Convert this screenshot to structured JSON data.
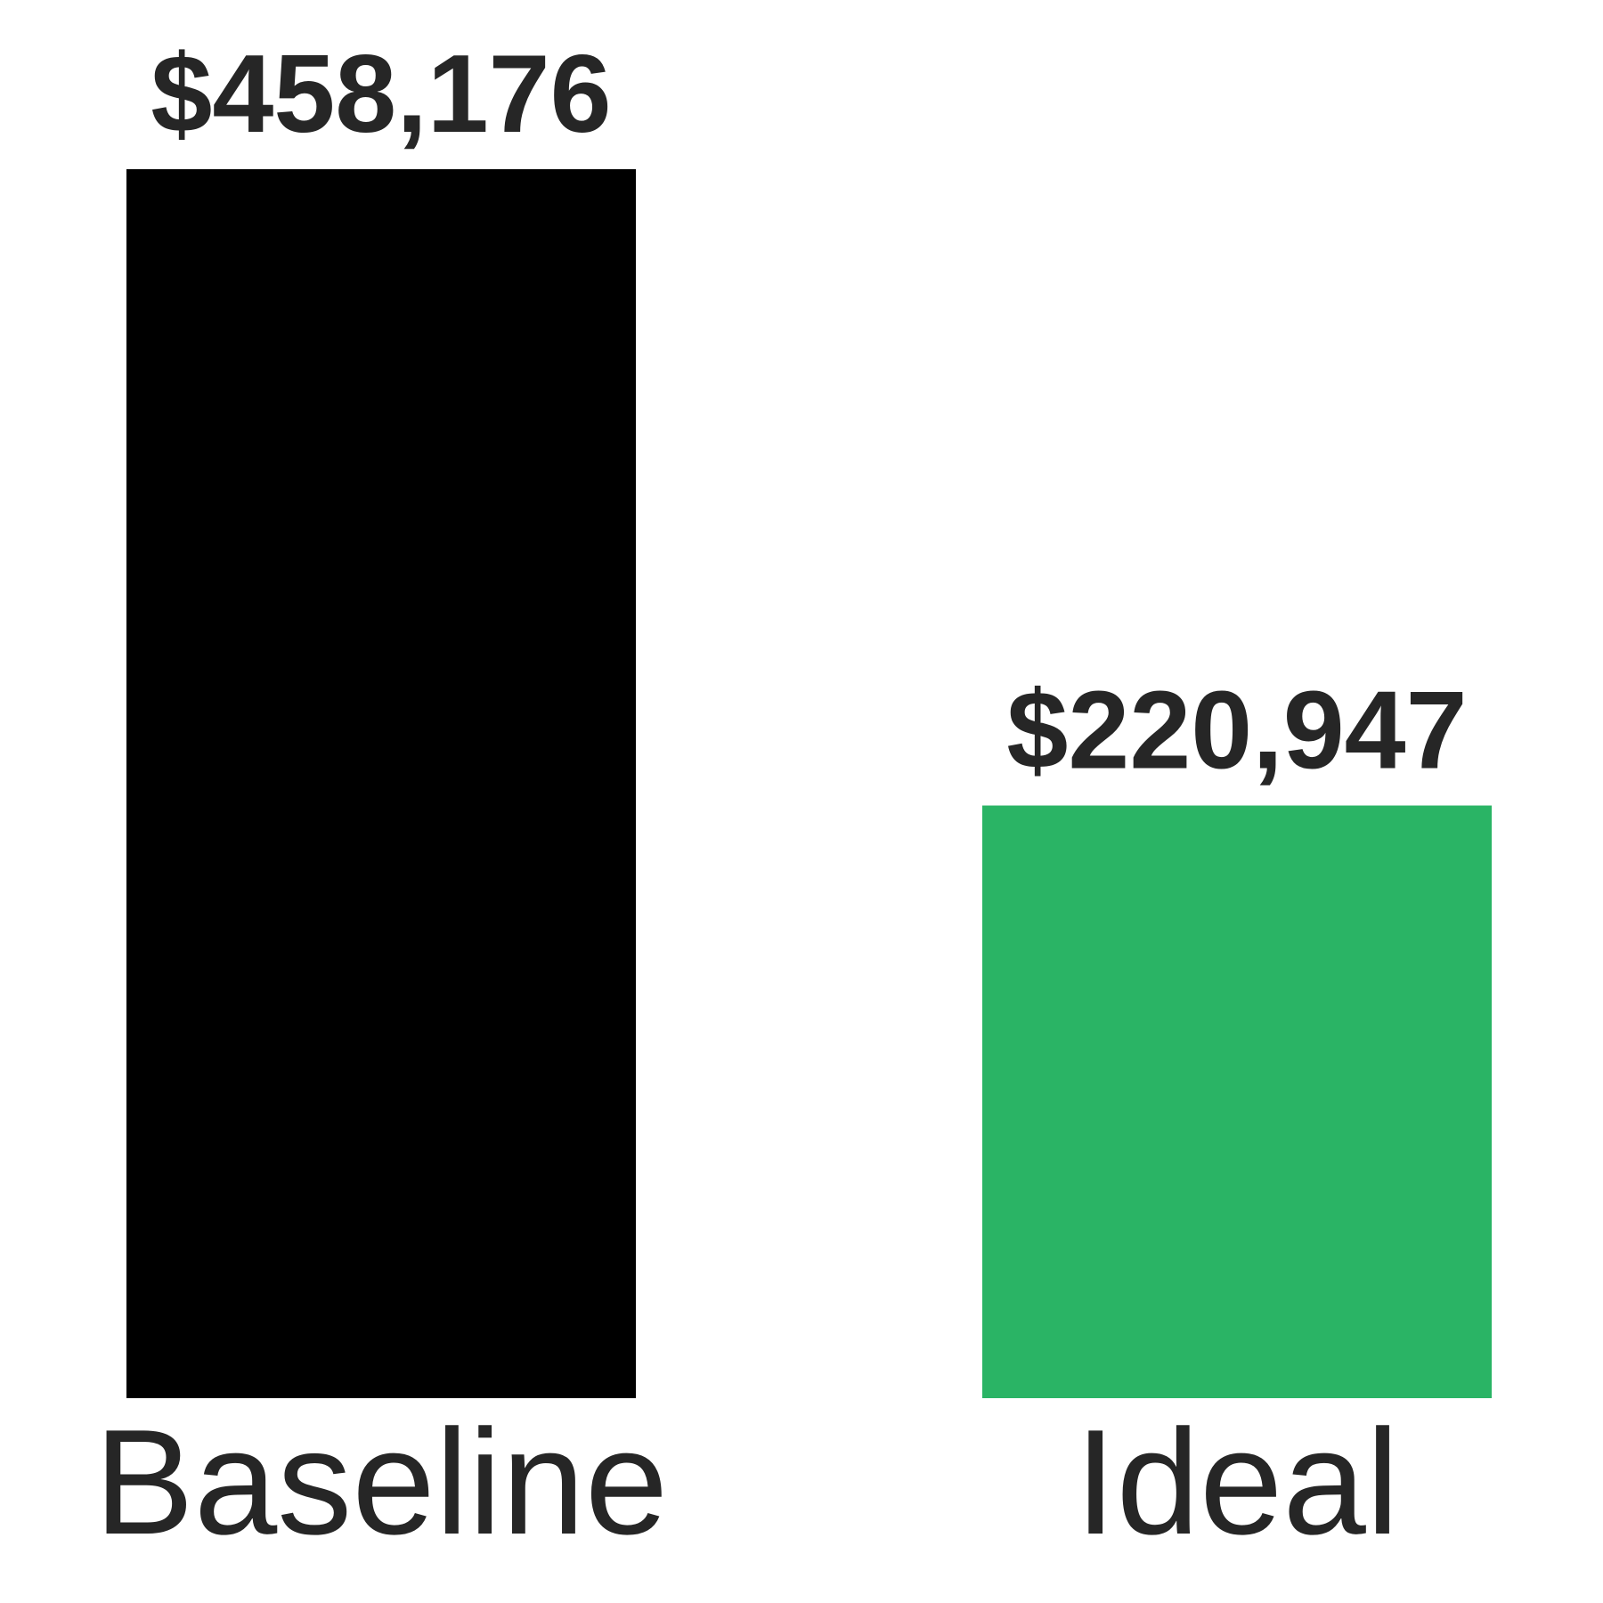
{
  "chart_data": {
    "type": "bar",
    "categories": [
      "Baseline",
      "Ideal"
    ],
    "values": [
      458176,
      220947
    ],
    "data_labels": [
      "$458,176",
      "$220,947"
    ],
    "colors": [
      "#000000",
      "#2ab465"
    ],
    "title": "",
    "xlabel": "",
    "ylabel": "",
    "ylim": [
      0,
      458176
    ],
    "grid": false,
    "legend": "none"
  }
}
